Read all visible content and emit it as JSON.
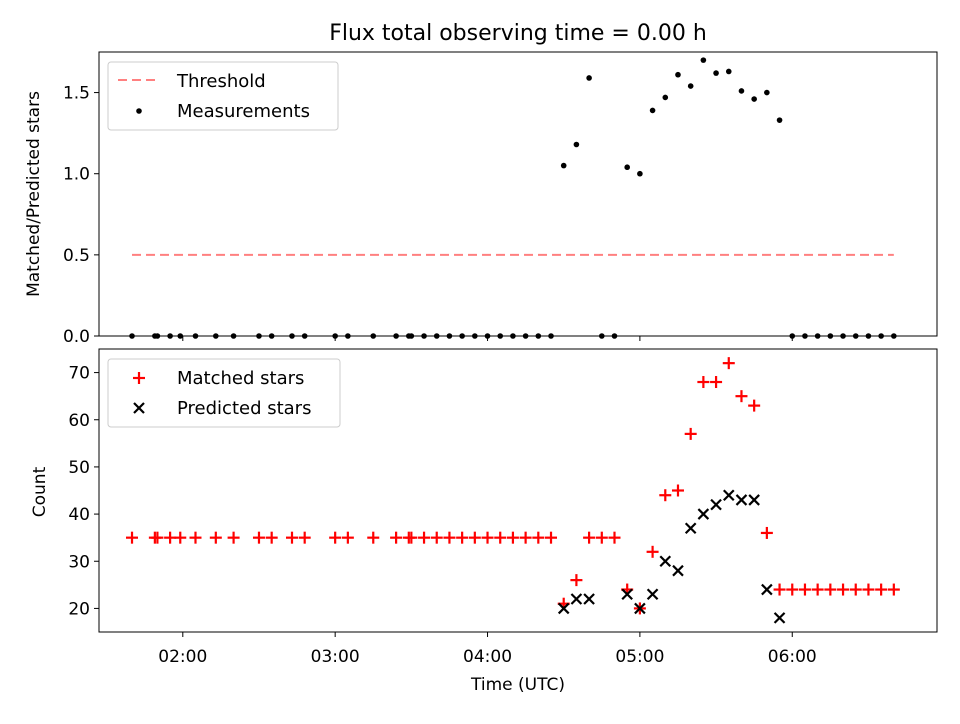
{
  "chart_data": [
    {
      "type": "scatter",
      "title": "Flux total observing time = 0.00 h",
      "xlabel": "",
      "ylabel": "Matched/Predicted stars",
      "xlim": [
        "01:27",
        "06:57"
      ],
      "ylim": [
        0,
        1.75
      ],
      "yticks": [
        {
          "v": 0.0,
          "label": "0.0"
        },
        {
          "v": 0.5,
          "label": "0.5"
        },
        {
          "v": 1.0,
          "label": "1.0"
        },
        {
          "v": 1.5,
          "label": "1.5"
        }
      ],
      "legend_position": "top-left",
      "series": [
        {
          "name": "Threshold",
          "kind": "dashed-line",
          "color": "#ff8080",
          "points": [
            [
              "01:40",
              0.5
            ],
            [
              "06:40",
              0.5
            ]
          ]
        },
        {
          "name": "Measurements",
          "kind": "dot",
          "color": "#000000",
          "points": [
            [
              "01:40",
              0
            ],
            [
              "01:49",
              0
            ],
            [
              "01:50",
              0
            ],
            [
              "01:55",
              0
            ],
            [
              "01:59",
              0
            ],
            [
              "02:05",
              0
            ],
            [
              "02:13",
              0
            ],
            [
              "02:20",
              0
            ],
            [
              "02:30",
              0
            ],
            [
              "02:35",
              0
            ],
            [
              "02:43",
              0
            ],
            [
              "02:48",
              0
            ],
            [
              "03:00",
              0
            ],
            [
              "03:05",
              0
            ],
            [
              "03:15",
              0
            ],
            [
              "03:24",
              0
            ],
            [
              "03:29",
              0
            ],
            [
              "03:30",
              0
            ],
            [
              "03:35",
              0
            ],
            [
              "03:40",
              0
            ],
            [
              "03:45",
              0
            ],
            [
              "03:50",
              0
            ],
            [
              "03:55",
              0
            ],
            [
              "04:00",
              0
            ],
            [
              "04:05",
              0
            ],
            [
              "04:10",
              0
            ],
            [
              "04:15",
              0
            ],
            [
              "04:20",
              0
            ],
            [
              "04:25",
              0
            ],
            [
              "04:30",
              1.05
            ],
            [
              "04:35",
              1.18
            ],
            [
              "04:40",
              1.59
            ],
            [
              "04:45",
              0
            ],
            [
              "04:50",
              0
            ],
            [
              "04:55",
              1.04
            ],
            [
              "05:00",
              1.0
            ],
            [
              "05:05",
              1.39
            ],
            [
              "05:10",
              1.47
            ],
            [
              "05:15",
              1.61
            ],
            [
              "05:20",
              1.54
            ],
            [
              "05:25",
              1.7
            ],
            [
              "05:30",
              1.62
            ],
            [
              "05:35",
              1.63
            ],
            [
              "05:40",
              1.51
            ],
            [
              "05:45",
              1.46
            ],
            [
              "05:50",
              1.5
            ],
            [
              "05:55",
              1.33
            ],
            [
              "06:00",
              0
            ],
            [
              "06:05",
              0
            ],
            [
              "06:10",
              0
            ],
            [
              "06:15",
              0
            ],
            [
              "06:20",
              0
            ],
            [
              "06:25",
              0
            ],
            [
              "06:30",
              0
            ],
            [
              "06:35",
              0
            ],
            [
              "06:40",
              0
            ]
          ]
        }
      ]
    },
    {
      "type": "scatter",
      "title": "",
      "xlabel": "Time (UTC)",
      "ylabel": "Count",
      "xlim": [
        "01:27",
        "06:57"
      ],
      "ylim": [
        15,
        75
      ],
      "yticks": [
        {
          "v": 20,
          "label": "20"
        },
        {
          "v": 30,
          "label": "30"
        },
        {
          "v": 40,
          "label": "40"
        },
        {
          "v": 50,
          "label": "50"
        },
        {
          "v": 60,
          "label": "60"
        },
        {
          "v": 70,
          "label": "70"
        }
      ],
      "xticks": [
        {
          "t": "02:00",
          "label": "02:00"
        },
        {
          "t": "03:00",
          "label": "03:00"
        },
        {
          "t": "04:00",
          "label": "04:00"
        },
        {
          "t": "05:00",
          "label": "05:00"
        },
        {
          "t": "06:00",
          "label": "06:00"
        }
      ],
      "legend_position": "top-left",
      "series": [
        {
          "name": "Matched stars",
          "kind": "plus",
          "color": "#ff0000",
          "points": [
            [
              "01:40",
              35
            ],
            [
              "01:49",
              35
            ],
            [
              "01:50",
              35
            ],
            [
              "01:55",
              35
            ],
            [
              "01:59",
              35
            ],
            [
              "02:05",
              35
            ],
            [
              "02:13",
              35
            ],
            [
              "02:20",
              35
            ],
            [
              "02:30",
              35
            ],
            [
              "02:35",
              35
            ],
            [
              "02:43",
              35
            ],
            [
              "02:48",
              35
            ],
            [
              "03:00",
              35
            ],
            [
              "03:05",
              35
            ],
            [
              "03:15",
              35
            ],
            [
              "03:24",
              35
            ],
            [
              "03:29",
              35
            ],
            [
              "03:30",
              35
            ],
            [
              "03:35",
              35
            ],
            [
              "03:40",
              35
            ],
            [
              "03:45",
              35
            ],
            [
              "03:50",
              35
            ],
            [
              "03:55",
              35
            ],
            [
              "04:00",
              35
            ],
            [
              "04:05",
              35
            ],
            [
              "04:10",
              35
            ],
            [
              "04:15",
              35
            ],
            [
              "04:20",
              35
            ],
            [
              "04:25",
              35
            ],
            [
              "04:30",
              21
            ],
            [
              "04:35",
              26
            ],
            [
              "04:40",
              35
            ],
            [
              "04:45",
              35
            ],
            [
              "04:50",
              35
            ],
            [
              "04:55",
              24
            ],
            [
              "05:00",
              20
            ],
            [
              "05:05",
              32
            ],
            [
              "05:10",
              44
            ],
            [
              "05:15",
              45
            ],
            [
              "05:20",
              57
            ],
            [
              "05:25",
              68
            ],
            [
              "05:30",
              68
            ],
            [
              "05:35",
              72
            ],
            [
              "05:40",
              65
            ],
            [
              "05:45",
              63
            ],
            [
              "05:50",
              36
            ],
            [
              "05:55",
              24
            ],
            [
              "06:00",
              24
            ],
            [
              "06:05",
              24
            ],
            [
              "06:10",
              24
            ],
            [
              "06:15",
              24
            ],
            [
              "06:20",
              24
            ],
            [
              "06:25",
              24
            ],
            [
              "06:30",
              24
            ],
            [
              "06:35",
              24
            ],
            [
              "06:40",
              24
            ]
          ]
        },
        {
          "name": "Predicted stars",
          "kind": "x",
          "color": "#000000",
          "points": [
            [
              "04:30",
              20
            ],
            [
              "04:35",
              22
            ],
            [
              "04:40",
              22
            ],
            [
              "04:55",
              23
            ],
            [
              "05:00",
              20
            ],
            [
              "05:05",
              23
            ],
            [
              "05:10",
              30
            ],
            [
              "05:15",
              28
            ],
            [
              "05:20",
              37
            ],
            [
              "05:25",
              40
            ],
            [
              "05:30",
              42
            ],
            [
              "05:35",
              44
            ],
            [
              "05:40",
              43
            ],
            [
              "05:45",
              43
            ],
            [
              "05:50",
              24
            ],
            [
              "05:55",
              18
            ]
          ]
        }
      ]
    }
  ]
}
